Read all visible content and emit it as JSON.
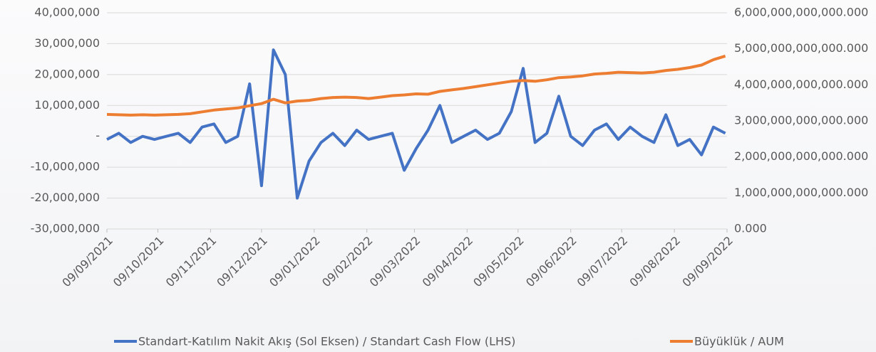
{
  "chart_data": {
    "type": "line",
    "x": [
      "09/09/2021",
      "16/09/2021",
      "23/09/2021",
      "30/09/2021",
      "07/10/2021",
      "14/10/2021",
      "21/10/2021",
      "28/10/2021",
      "04/11/2021",
      "11/11/2021",
      "18/11/2021",
      "25/11/2021",
      "02/12/2021",
      "09/12/2021",
      "16/12/2021",
      "23/12/2021",
      "30/12/2021",
      "06/01/2022",
      "13/01/2022",
      "20/01/2022",
      "27/01/2022",
      "03/02/2022",
      "10/02/2022",
      "17/02/2022",
      "24/02/2022",
      "03/03/2022",
      "10/03/2022",
      "17/03/2022",
      "24/03/2022",
      "31/03/2022",
      "07/04/2022",
      "14/04/2022",
      "21/04/2022",
      "28/04/2022",
      "05/05/2022",
      "12/05/2022",
      "19/05/2022",
      "26/05/2022",
      "02/06/2022",
      "09/06/2022",
      "16/06/2022",
      "23/06/2022",
      "30/06/2022",
      "07/07/2022",
      "14/07/2022",
      "21/07/2022",
      "28/07/2022",
      "04/08/2022",
      "11/08/2022",
      "18/08/2022",
      "25/08/2022",
      "01/09/2022",
      "08/09/2022"
    ],
    "series": [
      {
        "name": "Standart-Katılım Nakit Akış (Sol Eksen) / Standart Cash Flow (LHS)",
        "color": "#4472c4",
        "values": [
          -1000000,
          1000000,
          -2000000,
          0,
          -1000000,
          0,
          1000000,
          -2000000,
          3000000,
          4000000,
          -2000000,
          0,
          17000000,
          -16000000,
          28000000,
          20000000,
          -20000000,
          -8000000,
          -2000000,
          1000000,
          -3000000,
          2000000,
          -1000000,
          0,
          1000000,
          -11000000,
          -4000000,
          2000000,
          10000000,
          -2000000,
          0,
          2000000,
          -1000000,
          1000000,
          8000000,
          22000000,
          -2000000,
          1000000,
          13000000,
          0,
          -3000000,
          2000000,
          4000000,
          -1000000,
          3000000,
          0,
          -2000000,
          7000000,
          -3000000,
          -1000000,
          -6000000,
          3000000,
          1000000
        ]
      },
      {
        "name": "Büyüklük / AUM",
        "color": "#ed7d31",
        "axis": "y2",
        "values": [
          3180000000000,
          3170000000000,
          3160000000000,
          3170000000000,
          3160000000000,
          3170000000000,
          3180000000000,
          3200000000000,
          3250000000000,
          3300000000000,
          3330000000000,
          3360000000000,
          3420000000000,
          3480000000000,
          3600000000000,
          3500000000000,
          3550000000000,
          3570000000000,
          3620000000000,
          3650000000000,
          3660000000000,
          3650000000000,
          3620000000000,
          3660000000000,
          3700000000000,
          3720000000000,
          3750000000000,
          3740000000000,
          3820000000000,
          3860000000000,
          3900000000000,
          3950000000000,
          4000000000000,
          4050000000000,
          4100000000000,
          4120000000000,
          4100000000000,
          4140000000000,
          4200000000000,
          4220000000000,
          4250000000000,
          4300000000000,
          4320000000000,
          4350000000000,
          4340000000000,
          4330000000000,
          4350000000000,
          4400000000000,
          4430000000000,
          4480000000000,
          4550000000000,
          4700000000000,
          4800000000000
        ]
      }
    ],
    "xlim": [
      "09/09/2021",
      "09/09/2022"
    ],
    "xticks": [
      "09/09/2021",
      "09/10/2021",
      "09/11/2021",
      "09/12/2021",
      "09/01/2022",
      "09/02/2022",
      "09/03/2022",
      "09/04/2022",
      "09/05/2022",
      "09/06/2022",
      "09/07/2022",
      "09/08/2022",
      "09/09/2022"
    ],
    "ylim": [
      -30000000,
      40000000
    ],
    "yticks": [
      {
        "value": -30000000,
        "label": "-30,000,000"
      },
      {
        "value": -20000000,
        "label": "-20,000,000"
      },
      {
        "value": -10000000,
        "label": "-10,000,000"
      },
      {
        "value": 0,
        "label": "-"
      },
      {
        "value": 10000000,
        "label": "10,000,000"
      },
      {
        "value": 20000000,
        "label": "20,000,000"
      },
      {
        "value": 30000000,
        "label": "30,000,000"
      },
      {
        "value": 40000000,
        "label": "40,000,000"
      }
    ],
    "y2lim": [
      0,
      6000000000000
    ],
    "y2ticks": [
      {
        "value": 0,
        "label": "0.000"
      },
      {
        "value": 1000000000000,
        "label": "1,000,000,000,000.000"
      },
      {
        "value": 2000000000000,
        "label": "2,000,000,000,000.000"
      },
      {
        "value": 3000000000000,
        "label": "3,000,000,000,000.000"
      },
      {
        "value": 4000000000000,
        "label": "4,000,000,000,000.000"
      },
      {
        "value": 5000000000000,
        "label": "5,000,000,000,000.000"
      },
      {
        "value": 6000000000000,
        "label": "6,000,000,000,000.000"
      }
    ],
    "grid": true,
    "legend": "bottom"
  }
}
